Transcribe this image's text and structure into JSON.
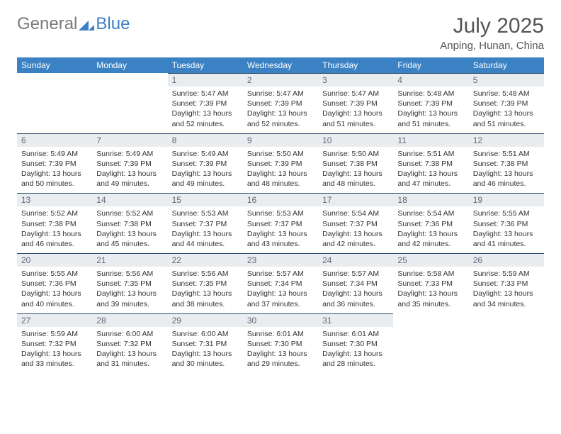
{
  "logo": {
    "part1": "General",
    "part2": "Blue"
  },
  "title": {
    "month": "July 2025",
    "location": "Anping, Hunan, China"
  },
  "columns": [
    "Sunday",
    "Monday",
    "Tuesday",
    "Wednesday",
    "Thursday",
    "Friday",
    "Saturday"
  ],
  "colors": {
    "header_bg": "#3b82c4",
    "header_fg": "#ffffff",
    "daynum_bg": "#e9edf0",
    "daynum_border": "#2a4a6a",
    "text": "#333333",
    "logo_blue": "#3b7fc4"
  },
  "weeks": [
    [
      null,
      null,
      {
        "n": "1",
        "sr": "Sunrise: 5:47 AM",
        "ss": "Sunset: 7:39 PM",
        "dl": "Daylight: 13 hours and 52 minutes."
      },
      {
        "n": "2",
        "sr": "Sunrise: 5:47 AM",
        "ss": "Sunset: 7:39 PM",
        "dl": "Daylight: 13 hours and 52 minutes."
      },
      {
        "n": "3",
        "sr": "Sunrise: 5:47 AM",
        "ss": "Sunset: 7:39 PM",
        "dl": "Daylight: 13 hours and 51 minutes."
      },
      {
        "n": "4",
        "sr": "Sunrise: 5:48 AM",
        "ss": "Sunset: 7:39 PM",
        "dl": "Daylight: 13 hours and 51 minutes."
      },
      {
        "n": "5",
        "sr": "Sunrise: 5:48 AM",
        "ss": "Sunset: 7:39 PM",
        "dl": "Daylight: 13 hours and 51 minutes."
      }
    ],
    [
      {
        "n": "6",
        "sr": "Sunrise: 5:49 AM",
        "ss": "Sunset: 7:39 PM",
        "dl": "Daylight: 13 hours and 50 minutes."
      },
      {
        "n": "7",
        "sr": "Sunrise: 5:49 AM",
        "ss": "Sunset: 7:39 PM",
        "dl": "Daylight: 13 hours and 49 minutes."
      },
      {
        "n": "8",
        "sr": "Sunrise: 5:49 AM",
        "ss": "Sunset: 7:39 PM",
        "dl": "Daylight: 13 hours and 49 minutes."
      },
      {
        "n": "9",
        "sr": "Sunrise: 5:50 AM",
        "ss": "Sunset: 7:39 PM",
        "dl": "Daylight: 13 hours and 48 minutes."
      },
      {
        "n": "10",
        "sr": "Sunrise: 5:50 AM",
        "ss": "Sunset: 7:38 PM",
        "dl": "Daylight: 13 hours and 48 minutes."
      },
      {
        "n": "11",
        "sr": "Sunrise: 5:51 AM",
        "ss": "Sunset: 7:38 PM",
        "dl": "Daylight: 13 hours and 47 minutes."
      },
      {
        "n": "12",
        "sr": "Sunrise: 5:51 AM",
        "ss": "Sunset: 7:38 PM",
        "dl": "Daylight: 13 hours and 46 minutes."
      }
    ],
    [
      {
        "n": "13",
        "sr": "Sunrise: 5:52 AM",
        "ss": "Sunset: 7:38 PM",
        "dl": "Daylight: 13 hours and 46 minutes."
      },
      {
        "n": "14",
        "sr": "Sunrise: 5:52 AM",
        "ss": "Sunset: 7:38 PM",
        "dl": "Daylight: 13 hours and 45 minutes."
      },
      {
        "n": "15",
        "sr": "Sunrise: 5:53 AM",
        "ss": "Sunset: 7:37 PM",
        "dl": "Daylight: 13 hours and 44 minutes."
      },
      {
        "n": "16",
        "sr": "Sunrise: 5:53 AM",
        "ss": "Sunset: 7:37 PM",
        "dl": "Daylight: 13 hours and 43 minutes."
      },
      {
        "n": "17",
        "sr": "Sunrise: 5:54 AM",
        "ss": "Sunset: 7:37 PM",
        "dl": "Daylight: 13 hours and 42 minutes."
      },
      {
        "n": "18",
        "sr": "Sunrise: 5:54 AM",
        "ss": "Sunset: 7:36 PM",
        "dl": "Daylight: 13 hours and 42 minutes."
      },
      {
        "n": "19",
        "sr": "Sunrise: 5:55 AM",
        "ss": "Sunset: 7:36 PM",
        "dl": "Daylight: 13 hours and 41 minutes."
      }
    ],
    [
      {
        "n": "20",
        "sr": "Sunrise: 5:55 AM",
        "ss": "Sunset: 7:36 PM",
        "dl": "Daylight: 13 hours and 40 minutes."
      },
      {
        "n": "21",
        "sr": "Sunrise: 5:56 AM",
        "ss": "Sunset: 7:35 PM",
        "dl": "Daylight: 13 hours and 39 minutes."
      },
      {
        "n": "22",
        "sr": "Sunrise: 5:56 AM",
        "ss": "Sunset: 7:35 PM",
        "dl": "Daylight: 13 hours and 38 minutes."
      },
      {
        "n": "23",
        "sr": "Sunrise: 5:57 AM",
        "ss": "Sunset: 7:34 PM",
        "dl": "Daylight: 13 hours and 37 minutes."
      },
      {
        "n": "24",
        "sr": "Sunrise: 5:57 AM",
        "ss": "Sunset: 7:34 PM",
        "dl": "Daylight: 13 hours and 36 minutes."
      },
      {
        "n": "25",
        "sr": "Sunrise: 5:58 AM",
        "ss": "Sunset: 7:33 PM",
        "dl": "Daylight: 13 hours and 35 minutes."
      },
      {
        "n": "26",
        "sr": "Sunrise: 5:59 AM",
        "ss": "Sunset: 7:33 PM",
        "dl": "Daylight: 13 hours and 34 minutes."
      }
    ],
    [
      {
        "n": "27",
        "sr": "Sunrise: 5:59 AM",
        "ss": "Sunset: 7:32 PM",
        "dl": "Daylight: 13 hours and 33 minutes."
      },
      {
        "n": "28",
        "sr": "Sunrise: 6:00 AM",
        "ss": "Sunset: 7:32 PM",
        "dl": "Daylight: 13 hours and 31 minutes."
      },
      {
        "n": "29",
        "sr": "Sunrise: 6:00 AM",
        "ss": "Sunset: 7:31 PM",
        "dl": "Daylight: 13 hours and 30 minutes."
      },
      {
        "n": "30",
        "sr": "Sunrise: 6:01 AM",
        "ss": "Sunset: 7:30 PM",
        "dl": "Daylight: 13 hours and 29 minutes."
      },
      {
        "n": "31",
        "sr": "Sunrise: 6:01 AM",
        "ss": "Sunset: 7:30 PM",
        "dl": "Daylight: 13 hours and 28 minutes."
      },
      null,
      null
    ]
  ]
}
